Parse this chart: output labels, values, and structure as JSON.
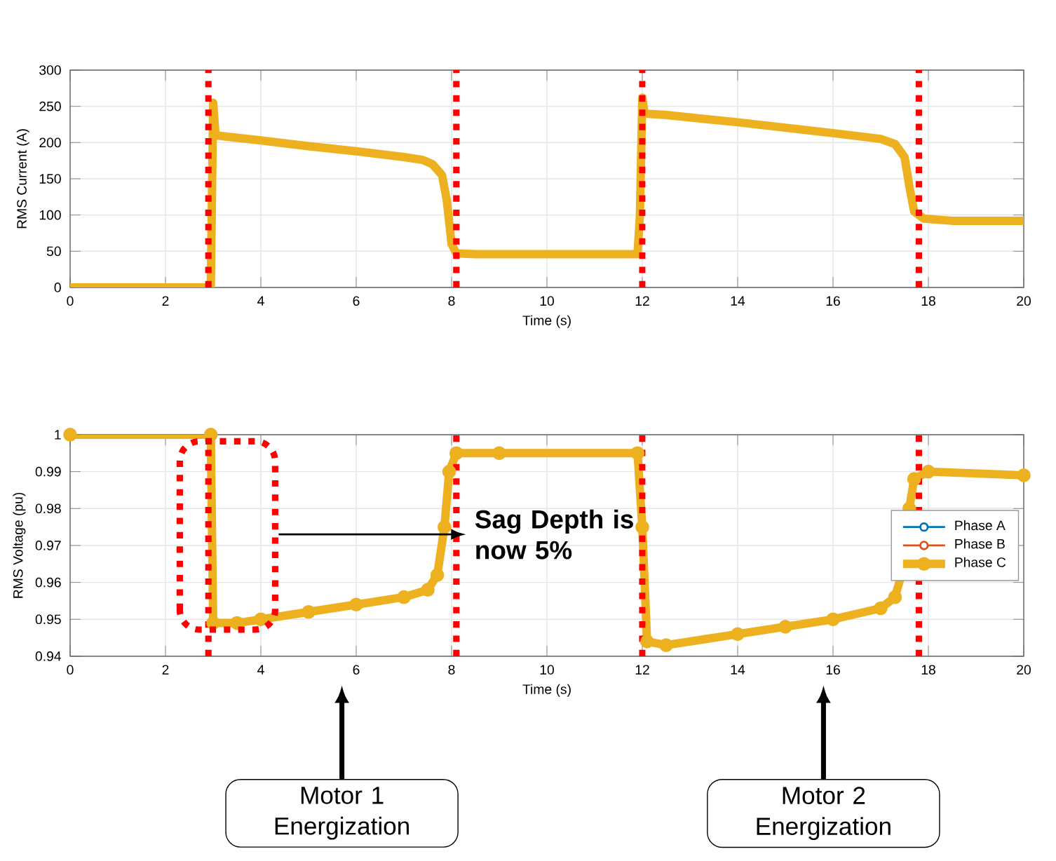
{
  "chart_data": [
    {
      "type": "line",
      "xlabel": "Time (s)",
      "ylabel": "RMS Current (A)",
      "x": [
        0,
        2.9,
        2.95,
        3.0,
        3.05,
        3.3,
        4,
        5,
        6,
        7,
        7.4,
        7.6,
        7.8,
        7.9,
        8.0,
        8.1,
        8.5,
        10,
        11.9,
        11.95,
        12.0,
        12.05,
        12.5,
        14,
        16,
        17,
        17.3,
        17.5,
        17.6,
        17.7,
        17.9,
        18.5,
        20
      ],
      "series": [
        {
          "color": "#edb120",
          "values": [
            0,
            0,
            0,
            255,
            210,
            208,
            203,
            195,
            188,
            180,
            176,
            170,
            155,
            120,
            60,
            47,
            46,
            46,
            46,
            100,
            262,
            240,
            238,
            228,
            213,
            205,
            198,
            180,
            140,
            105,
            95,
            92,
            92
          ]
        }
      ],
      "xlim": [
        0,
        20
      ],
      "ylim": [
        0,
        300
      ],
      "xticks": [
        0,
        2,
        4,
        6,
        8,
        10,
        12,
        14,
        16,
        18,
        20
      ],
      "yticks": [
        0,
        50,
        100,
        150,
        200,
        250,
        300
      ],
      "grid": true,
      "ref_lines": [
        {
          "axis": "x",
          "value": 2.9,
          "color": "#ff0000",
          "line_style": "dotted"
        },
        {
          "axis": "x",
          "value": 8.1,
          "color": "#ff0000",
          "line_style": "dotted"
        },
        {
          "axis": "x",
          "value": 12.0,
          "color": "#ff0000",
          "line_style": "dotted"
        },
        {
          "axis": "x",
          "value": 17.8,
          "color": "#ff0000",
          "line_style": "dotted"
        }
      ]
    },
    {
      "type": "line",
      "xlabel": "Time (s)",
      "ylabel": "RMS Voltage (pu)",
      "x": [
        0,
        2.95,
        3.0,
        3.5,
        4,
        5,
        6,
        7,
        7.5,
        7.7,
        7.85,
        7.95,
        8.1,
        9,
        11.9,
        12.0,
        12.1,
        12.5,
        14,
        15,
        16,
        17,
        17.3,
        17.5,
        17.6,
        17.7,
        18,
        20
      ],
      "series": [
        {
          "name": "Phase A",
          "color": "#0072bd",
          "values": [
            null,
            null,
            null,
            null,
            null,
            null,
            null,
            null,
            null,
            null,
            null,
            null,
            null,
            null,
            null,
            null,
            null,
            null,
            null,
            null,
            null,
            null,
            null,
            null,
            null,
            null,
            null,
            null
          ]
        },
        {
          "name": "Phase B",
          "color": "#d95319",
          "values": [
            null,
            null,
            null,
            null,
            null,
            null,
            null,
            null,
            null,
            null,
            null,
            null,
            null,
            null,
            null,
            null,
            null,
            null,
            null,
            null,
            null,
            null,
            null,
            null,
            null,
            null,
            null,
            null
          ]
        },
        {
          "name": "Phase C",
          "color": "#edb120",
          "values": [
            1.0,
            1.0,
            0.949,
            0.949,
            0.95,
            0.952,
            0.954,
            0.956,
            0.958,
            0.962,
            0.975,
            0.99,
            0.995,
            0.995,
            0.995,
            0.975,
            0.944,
            0.943,
            0.946,
            0.948,
            0.95,
            0.953,
            0.956,
            0.965,
            0.98,
            0.988,
            0.99,
            0.989
          ]
        }
      ],
      "xlim": [
        0,
        20
      ],
      "ylim": [
        0.94,
        1
      ],
      "xticks": [
        0,
        2,
        4,
        6,
        8,
        10,
        12,
        14,
        16,
        18,
        20
      ],
      "yticks": [
        0.94,
        0.95,
        0.96,
        0.97,
        0.98,
        0.99,
        1
      ],
      "grid": true,
      "legend": "right",
      "marker": "circle",
      "ref_lines": [
        {
          "axis": "x",
          "value": 2.9,
          "color": "#ff0000",
          "line_style": "dotted"
        },
        {
          "axis": "x",
          "value": 8.1,
          "color": "#ff0000",
          "line_style": "dotted"
        },
        {
          "axis": "x",
          "value": 12.0,
          "color": "#ff0000",
          "line_style": "dotted"
        },
        {
          "axis": "x",
          "value": 17.8,
          "color": "#ff0000",
          "line_style": "dotted"
        }
      ],
      "annotations": [
        "Sag Depth is now 5%",
        "Motor 1 Energization",
        "Motor 2 Energization"
      ]
    }
  ]
}
